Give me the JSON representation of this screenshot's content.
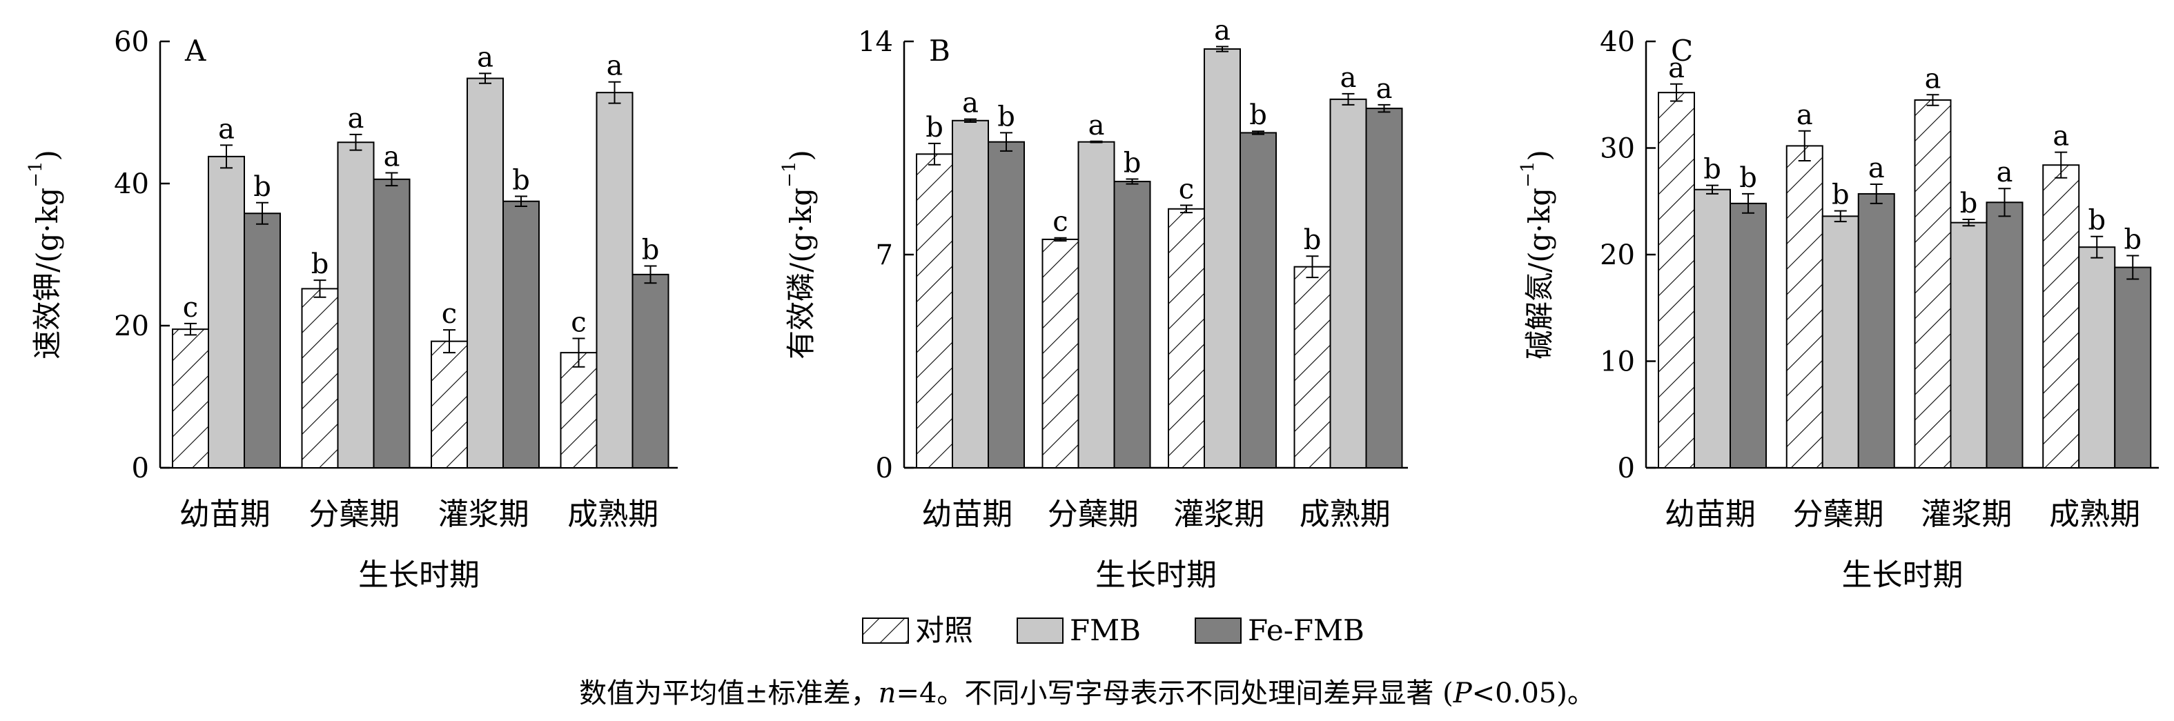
{
  "legend": {
    "placement": "bottom-center",
    "items": [
      {
        "label": "对照",
        "fill": "hatch"
      },
      {
        "label": "FMB",
        "fill": "#c8c8c8"
      },
      {
        "label": "Fe-FMB",
        "fill": "#7f7f7f"
      }
    ]
  },
  "caption": {
    "pre": "数值为平均值±标准差，",
    "n_var": "n",
    "n_val": "=4。不同小写字母表示不同处理间差异显著 (",
    "p_var": "P",
    "p_val": "<0.05)。"
  },
  "chart_data": [
    {
      "type": "bar",
      "panel_label": "A",
      "ylabel": "速效钾/(g·kg⁻¹)",
      "ylabel_main": "速效钾/(g·kg",
      "ylabel_sup": "−1",
      "ylabel_end": ")",
      "xlabel": "生长时期",
      "categories": [
        "幼苗期",
        "分蘖期",
        "灌浆期",
        "成熟期"
      ],
      "ylim": [
        0,
        60
      ],
      "yticks": [
        0,
        20,
        40,
        60
      ],
      "ytick_labels": [
        "0",
        "20",
        "40",
        "60"
      ],
      "grid": false,
      "series": [
        {
          "name": "对照",
          "values": [
            19.5,
            25.2,
            17.8,
            16.2
          ],
          "errors": [
            0.8,
            1.2,
            1.6,
            2.0
          ],
          "letters": [
            "c",
            "b",
            "c",
            "c"
          ]
        },
        {
          "name": "FMB",
          "values": [
            43.8,
            45.8,
            54.8,
            52.8
          ],
          "errors": [
            1.6,
            1.1,
            0.7,
            1.5
          ],
          "letters": [
            "a",
            "a",
            "a",
            "a"
          ]
        },
        {
          "name": "Fe-FMB",
          "values": [
            35.8,
            40.6,
            37.5,
            27.2
          ],
          "errors": [
            1.5,
            0.9,
            0.7,
            1.2
          ],
          "letters": [
            "b",
            "a",
            "b",
            "b"
          ]
        }
      ]
    },
    {
      "type": "bar",
      "panel_label": "B",
      "ylabel": "有效磷/(g·kg⁻¹)",
      "ylabel_main": "有效磷/(g·kg",
      "ylabel_sup": "−1",
      "ylabel_end": ")",
      "xlabel": "生长时期",
      "categories": [
        "幼苗期",
        "分蘖期",
        "灌浆期",
        "成熟期"
      ],
      "ylim": [
        0,
        14
      ],
      "yticks": [
        0,
        7,
        14
      ],
      "ytick_labels": [
        "0",
        "7",
        "14"
      ],
      "grid": false,
      "series": [
        {
          "name": "对照",
          "values": [
            10.3,
            7.5,
            8.5,
            6.6
          ],
          "errors": [
            0.35,
            0.05,
            0.12,
            0.35
          ],
          "letters": [
            "b",
            "c",
            "c",
            "b"
          ]
        },
        {
          "name": "FMB",
          "values": [
            11.4,
            10.7,
            13.75,
            12.1
          ],
          "errors": [
            0.05,
            0.02,
            0.08,
            0.18
          ],
          "letters": [
            "a",
            "a",
            "a",
            "a"
          ]
        },
        {
          "name": "Fe-FMB",
          "values": [
            10.7,
            9.4,
            11.0,
            11.8
          ],
          "errors": [
            0.3,
            0.08,
            0.05,
            0.12
          ],
          "letters": [
            "b",
            "b",
            "b",
            "a"
          ]
        }
      ]
    },
    {
      "type": "bar",
      "panel_label": "C",
      "ylabel": "碱解氮/(g·kg⁻¹)",
      "ylabel_main": "碱解氮/(g·kg",
      "ylabel_sup": "−1",
      "ylabel_end": ")",
      "xlabel": "生长时期",
      "categories": [
        "幼苗期",
        "分蘖期",
        "灌浆期",
        "成熟期"
      ],
      "ylim": [
        0,
        40
      ],
      "yticks": [
        0,
        10,
        20,
        30,
        40
      ],
      "ytick_labels": [
        "0",
        "10",
        "20",
        "30",
        "40"
      ],
      "grid": false,
      "series": [
        {
          "name": "对照",
          "values": [
            35.2,
            30.2,
            34.5,
            28.4
          ],
          "errors": [
            0.8,
            1.4,
            0.5,
            1.2
          ],
          "letters": [
            "a",
            "a",
            "a",
            "a"
          ]
        },
        {
          "name": "FMB",
          "values": [
            26.1,
            23.6,
            23.0,
            20.7
          ],
          "errors": [
            0.4,
            0.5,
            0.3,
            1.0
          ],
          "letters": [
            "b",
            "b",
            "b",
            "b"
          ]
        },
        {
          "name": "Fe-FMB",
          "values": [
            24.8,
            25.7,
            24.9,
            18.8
          ],
          "errors": [
            0.9,
            0.9,
            1.3,
            1.1
          ],
          "letters": [
            "b",
            "a",
            "a",
            "b"
          ]
        }
      ]
    }
  ]
}
